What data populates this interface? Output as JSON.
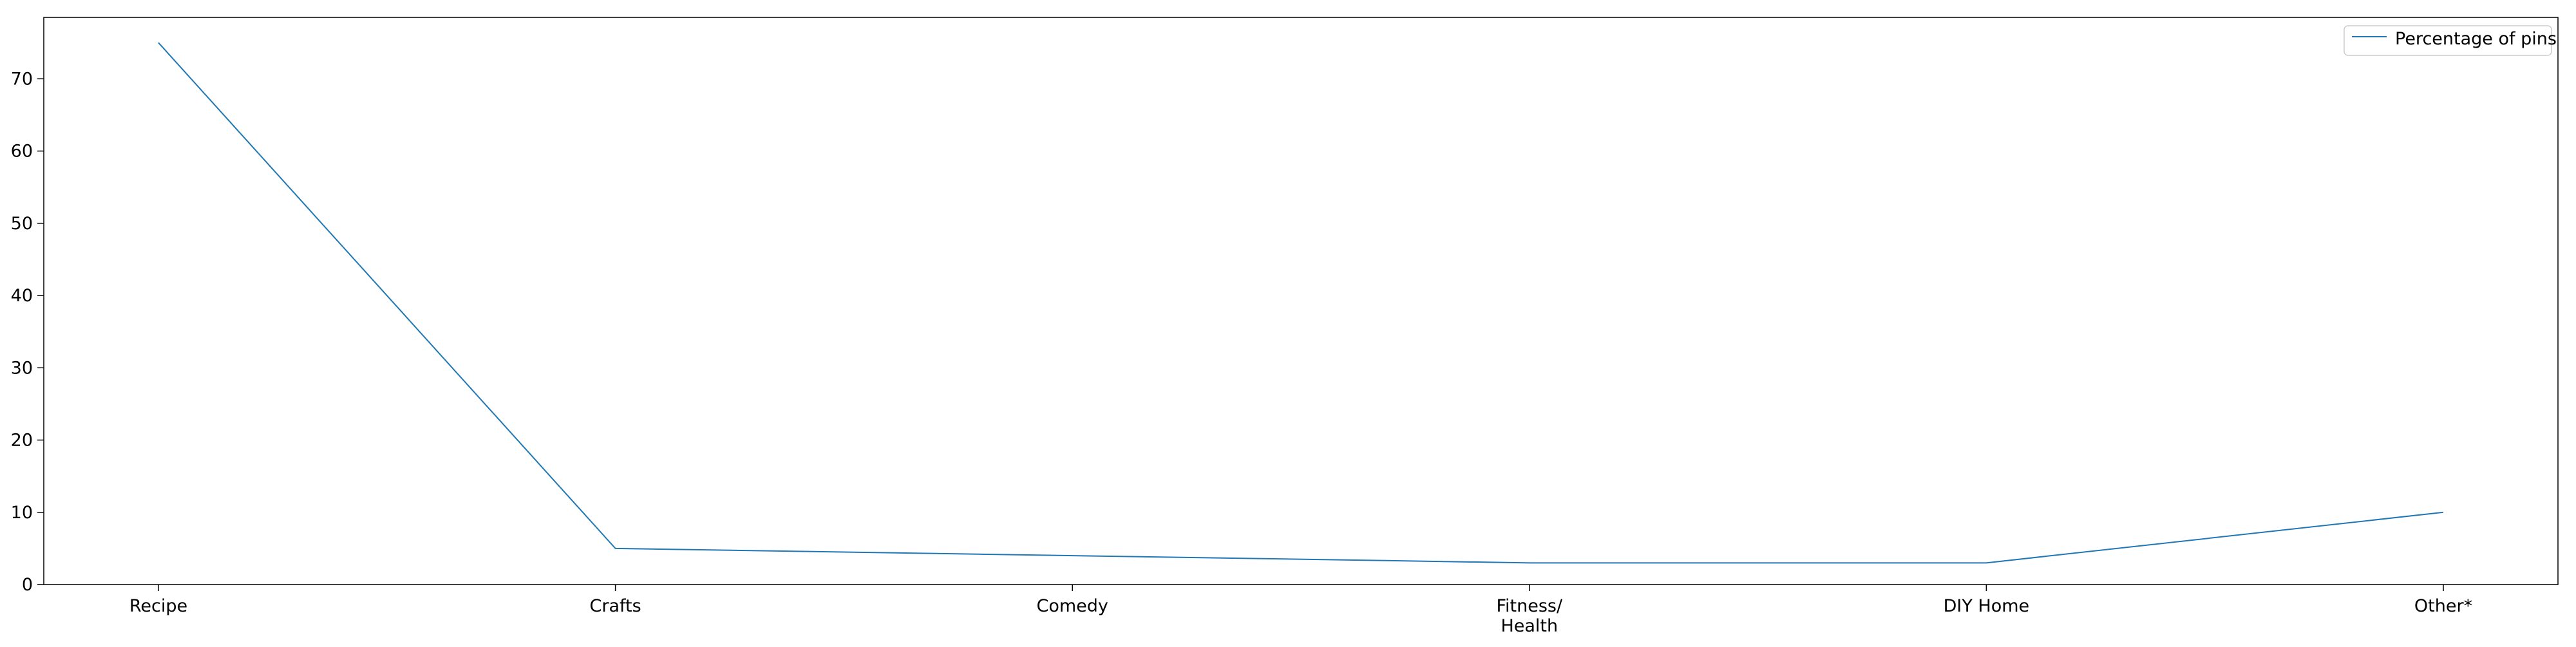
{
  "chart_data": {
    "type": "line",
    "title": "",
    "xlabel": "",
    "ylabel": "",
    "categories": [
      "Recipe",
      "Crafts",
      "Comedy",
      "Fitness/\nHealth",
      "DIY Home",
      "Other*"
    ],
    "series": [
      {
        "name": "Percentage of pins",
        "values": [
          75,
          5,
          4,
          3,
          3,
          10
        ],
        "color": "#1f77b4"
      }
    ],
    "ylim": [
      0,
      78.5
    ],
    "yticks": [
      0,
      10,
      20,
      30,
      40,
      50,
      60,
      70
    ],
    "grid": false,
    "legend_position": "top-right"
  }
}
